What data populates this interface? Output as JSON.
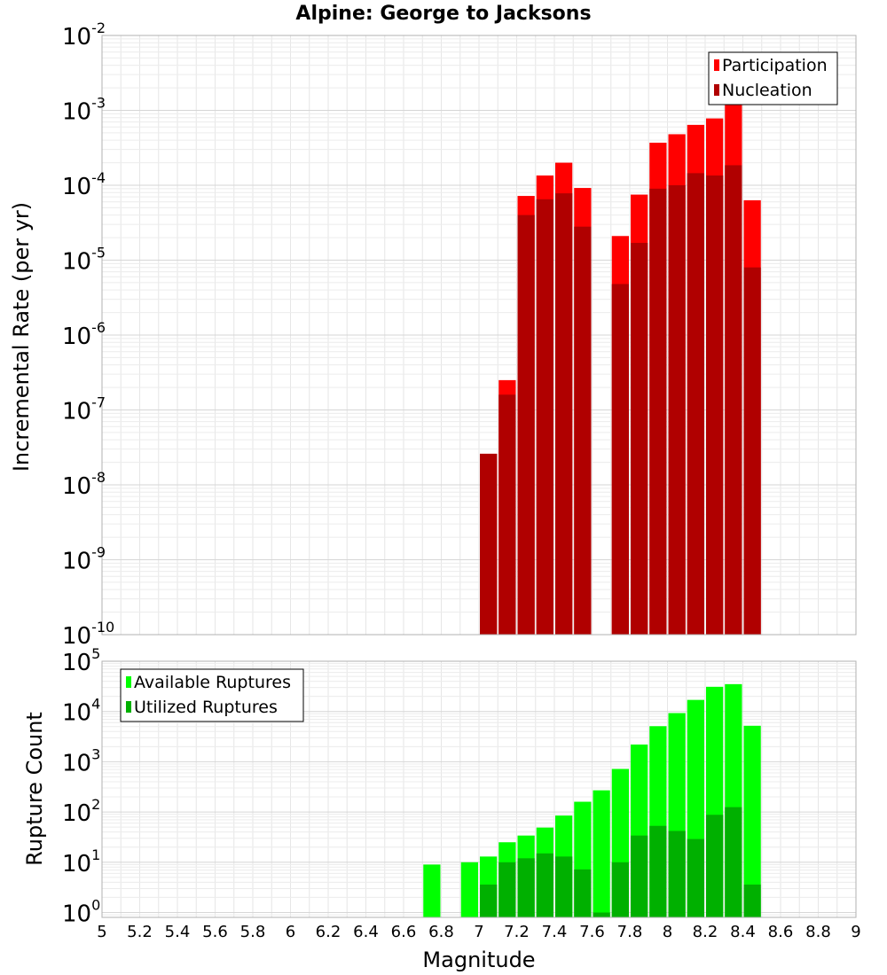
{
  "chart_data": [
    {
      "type": "bar",
      "title": "Alpine: George to Jacksons",
      "xlabel": "",
      "ylabel": "Incremental Rate (per yr)",
      "yscale": "log",
      "ylim": [
        1e-10,
        0.01
      ],
      "xlim": [
        5,
        9
      ],
      "grid": true,
      "legend_position": "top-right",
      "x_ticks": [
        "5",
        "5.2",
        "5.4",
        "5.6",
        "5.8",
        "6",
        "6.2",
        "6.4",
        "6.6",
        "6.8",
        "7",
        "7.2",
        "7.4",
        "7.6",
        "7.8",
        "8",
        "8.2",
        "8.4",
        "8.6",
        "8.8",
        "9"
      ],
      "y_ticks": [
        {
          "base": "10",
          "exp": "-10"
        },
        {
          "base": "10",
          "exp": "-9"
        },
        {
          "base": "10",
          "exp": "-8"
        },
        {
          "base": "10",
          "exp": "-7"
        },
        {
          "base": "10",
          "exp": "-6"
        },
        {
          "base": "10",
          "exp": "-5"
        },
        {
          "base": "10",
          "exp": "-4"
        },
        {
          "base": "10",
          "exp": "-3"
        },
        {
          "base": "10",
          "exp": "-2"
        }
      ],
      "x": [
        7.05,
        7.15,
        7.25,
        7.35,
        7.45,
        7.55,
        7.75,
        7.85,
        7.95,
        8.05,
        8.15,
        8.25,
        8.35,
        8.45
      ],
      "series": [
        {
          "name": "Participation",
          "color": "#ff0000",
          "values": [
            2.6e-08,
            2.5e-07,
            7.2e-05,
            0.000135,
            0.0002,
            9.2e-05,
            2.1e-05,
            7.5e-05,
            0.00037,
            0.00048,
            0.00064,
            0.00078,
            0.00125,
            6.3e-05
          ]
        },
        {
          "name": "Nucleation",
          "color": "#b00000",
          "values": [
            2.6e-08,
            1.6e-07,
            4e-05,
            6.5e-05,
            7.8e-05,
            2.8e-05,
            4.8e-06,
            1.7e-05,
            9e-05,
            0.0001,
            0.000145,
            0.000135,
            0.000185,
            8e-06
          ]
        }
      ]
    },
    {
      "type": "bar",
      "title": "",
      "xlabel": "Magnitude",
      "ylabel": "Rupture Count",
      "yscale": "log",
      "ylim": [
        0.8,
        100000
      ],
      "xlim": [
        5,
        9
      ],
      "grid": true,
      "legend_position": "top-left",
      "x_ticks": [
        "5",
        "5.2",
        "5.4",
        "5.6",
        "5.8",
        "6",
        "6.2",
        "6.4",
        "6.6",
        "6.8",
        "7",
        "7.2",
        "7.4",
        "7.6",
        "7.8",
        "8",
        "8.2",
        "8.4",
        "8.6",
        "8.8",
        "9"
      ],
      "y_ticks": [
        {
          "base": "10",
          "exp": "0"
        },
        {
          "base": "10",
          "exp": "1"
        },
        {
          "base": "10",
          "exp": "2"
        },
        {
          "base": "10",
          "exp": "3"
        },
        {
          "base": "10",
          "exp": "4"
        },
        {
          "base": "10",
          "exp": "5"
        }
      ],
      "x": [
        6.75,
        6.95,
        7.05,
        7.15,
        7.25,
        7.35,
        7.45,
        7.55,
        7.65,
        7.75,
        7.85,
        7.95,
        8.05,
        8.15,
        8.25,
        8.35,
        8.45
      ],
      "series": [
        {
          "name": "Available Ruptures",
          "color": "#00ff00",
          "values": [
            9,
            10,
            13,
            25,
            34,
            49,
            85,
            160,
            270,
            720,
            2200,
            5100,
            9300,
            17000,
            31000,
            35000,
            5200
          ]
        },
        {
          "name": "Utilized Ruptures",
          "color": "#00b000",
          "values": [
            0,
            0,
            3.6,
            10,
            12,
            15,
            13,
            7.2,
            1,
            10,
            34,
            53,
            42,
            29,
            88,
            125,
            3.6
          ]
        }
      ]
    }
  ]
}
